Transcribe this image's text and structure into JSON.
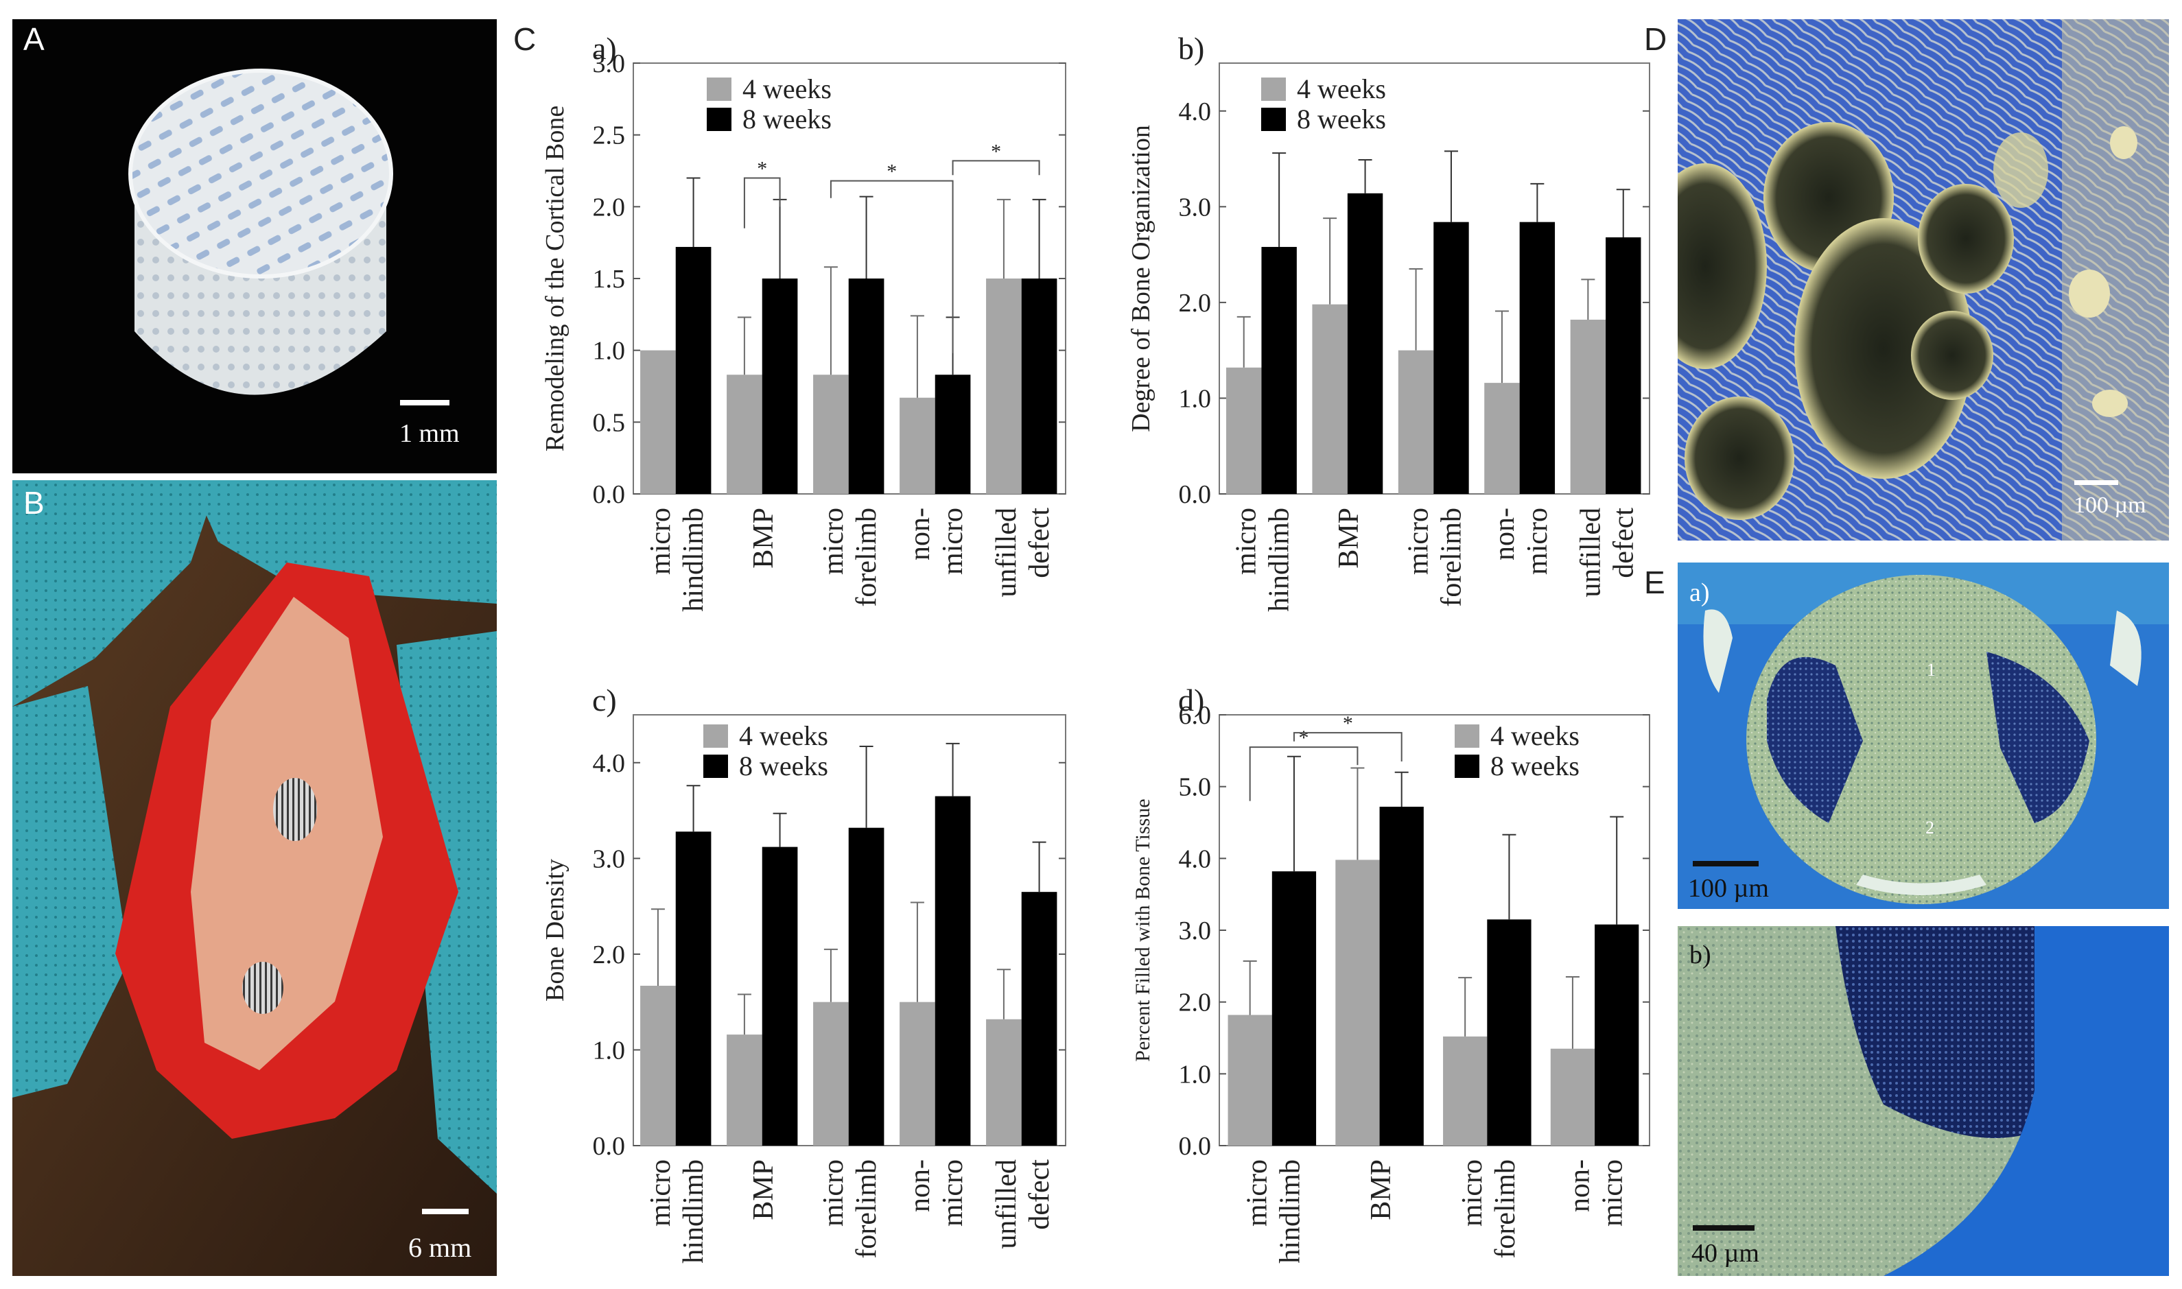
{
  "panels": {
    "A": {
      "letter": "A",
      "scale": "1 mm"
    },
    "B": {
      "letter": "B",
      "scale": "6 mm"
    },
    "C": {
      "letter": "C"
    },
    "D": {
      "letter": "D",
      "scale": "100 µm"
    },
    "E": {
      "letter": "E",
      "scale_a": "100 µm",
      "scale_b": "40 µm",
      "sub_a": "a)",
      "sub_b": "b)",
      "marker_1": "1",
      "marker_2": "2"
    }
  },
  "colors": {
    "week4": "#a6a6a6",
    "week8": "#000000",
    "blood": "#d8231f",
    "drape": "#3aa6b4",
    "stain_blue": "#2c5fc9",
    "stain_pale": "#a9c29c"
  },
  "chart_data": [
    {
      "id": "a",
      "type": "bar",
      "label": "a)",
      "ylabel": "Remodeling of the Cortical Bone",
      "ylim": [
        0,
        3.0
      ],
      "yticks": [
        "0.0",
        "0.5",
        "1.0",
        "1.5",
        "2.0",
        "2.5",
        "3.0"
      ],
      "categories": [
        [
          "micro",
          "hindlimb"
        ],
        [
          "BMP"
        ],
        [
          "micro",
          "forelimb"
        ],
        [
          "non-",
          "micro"
        ],
        [
          "unfilled",
          "defect"
        ]
      ],
      "legend": [
        "4 weeks",
        "8 weeks"
      ],
      "series": [
        {
          "name": "4 weeks",
          "values": [
            1.0,
            0.83,
            0.83,
            0.67,
            1.5
          ],
          "err": [
            0,
            0.4,
            0.75,
            0.57,
            0.55
          ]
        },
        {
          "name": "8 weeks",
          "values": [
            1.72,
            1.5,
            1.5,
            0.83,
            1.5
          ],
          "err": [
            0.48,
            0.55,
            0.57,
            0.4,
            0.55
          ]
        }
      ],
      "brackets": [
        {
          "from": 1,
          "fs": 0,
          "to": 1,
          "ts": 1,
          "y": 2.2,
          "label": "*",
          "drop": [
            0.35,
            0.2
          ]
        },
        {
          "from": 2,
          "fs": 0,
          "to": 3,
          "ts": 1,
          "y": 2.18,
          "label": "*",
          "drop": [
            0.12,
            1.2
          ]
        },
        {
          "from": 3,
          "fs": 1,
          "to": 4,
          "ts": 1,
          "y": 2.32,
          "label": "*",
          "drop": [
            0.1,
            0.1
          ]
        }
      ]
    },
    {
      "id": "b",
      "type": "bar",
      "label": "b)",
      "ylabel": "Degree of Bone Organization",
      "ylim": [
        0,
        4.5
      ],
      "yticks": [
        "0.0",
        "1.0",
        "2.0",
        "3.0",
        "4.0"
      ],
      "categories": [
        [
          "micro",
          "hindlimb"
        ],
        [
          "BMP"
        ],
        [
          "micro",
          "forelimb"
        ],
        [
          "non-",
          "micro"
        ],
        [
          "unfilled",
          "defect"
        ]
      ],
      "legend": [
        "4 weeks",
        "8 weeks"
      ],
      "series": [
        {
          "name": "4 weeks",
          "values": [
            1.32,
            1.98,
            1.5,
            1.16,
            1.82
          ],
          "err": [
            0.53,
            0.9,
            0.85,
            0.75,
            0.42
          ]
        },
        {
          "name": "8 weeks",
          "values": [
            2.58,
            3.14,
            2.84,
            2.84,
            2.68
          ],
          "err": [
            0.98,
            0.35,
            0.74,
            0.4,
            0.5
          ]
        }
      ],
      "brackets": []
    },
    {
      "id": "c",
      "type": "bar",
      "label": "c)",
      "ylabel": "Bone Density",
      "ylim": [
        0,
        4.5
      ],
      "yticks": [
        "0.0",
        "1.0",
        "2.0",
        "3.0",
        "4.0"
      ],
      "categories": [
        [
          "micro",
          "hindlimb"
        ],
        [
          "BMP"
        ],
        [
          "micro",
          "forelimb"
        ],
        [
          "non-",
          "micro"
        ],
        [
          "unfilled",
          "defect"
        ]
      ],
      "legend": [
        "4 weeks",
        "8 weeks"
      ],
      "series": [
        {
          "name": "4 weeks",
          "values": [
            1.67,
            1.16,
            1.5,
            1.5,
            1.32
          ],
          "err": [
            0.8,
            0.42,
            0.55,
            1.04,
            0.52
          ]
        },
        {
          "name": "8 weeks",
          "values": [
            3.28,
            3.12,
            3.32,
            3.65,
            2.65
          ],
          "err": [
            0.48,
            0.35,
            0.85,
            0.55,
            0.52
          ]
        }
      ],
      "brackets": []
    },
    {
      "id": "d",
      "type": "bar",
      "label": "d)",
      "ylabel": "Percent Filled with Bone Tissue",
      "ylim": [
        0,
        6.0
      ],
      "yticks": [
        "0.0",
        "1.0",
        "2.0",
        "3.0",
        "4.0",
        "5.0",
        "6.0"
      ],
      "categories": [
        [
          "micro",
          "hindlimb"
        ],
        [
          "BMP"
        ],
        [
          "micro",
          "forelimb"
        ],
        [
          "non-",
          "micro"
        ]
      ],
      "legend": [
        "4 weeks",
        "8 weeks"
      ],
      "series": [
        {
          "name": "4 weeks",
          "values": [
            1.82,
            3.98,
            1.52,
            1.35
          ],
          "err": [
            0.75,
            1.28,
            0.82,
            1.0
          ]
        },
        {
          "name": "8 weeks",
          "values": [
            3.82,
            4.72,
            3.15,
            3.08
          ],
          "err": [
            1.6,
            0.48,
            1.18,
            1.5
          ]
        }
      ],
      "brackets": [
        {
          "from": 0,
          "fs": 0,
          "to": 1,
          "ts": 0,
          "y": 5.55,
          "label": "*",
          "drop": [
            0.75,
            0.25
          ]
        },
        {
          "from": 0,
          "fs": 1,
          "to": 1,
          "ts": 1,
          "y": 5.75,
          "label": "*",
          "drop": [
            0.12,
            0.4
          ]
        }
      ]
    }
  ]
}
